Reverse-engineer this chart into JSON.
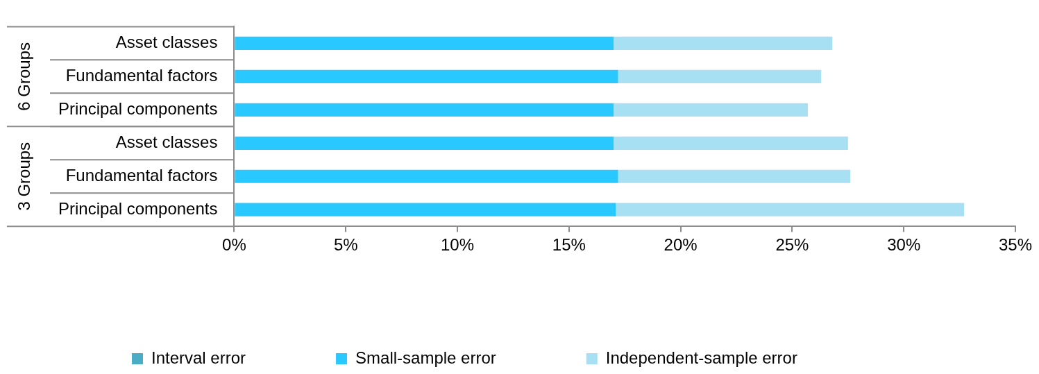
{
  "chart_data": {
    "type": "bar",
    "orientation": "horizontal",
    "stacked": true,
    "categories": [
      "Asset classes",
      "Fundamental factors",
      "Principal components",
      "Asset classes",
      "Fundamental factors",
      "Principal components"
    ],
    "series": [
      {
        "name": "Interval error",
        "color": "#4bacc6",
        "values": [
          0,
          0,
          0,
          0,
          0,
          0
        ]
      },
      {
        "name": "Small-sample error",
        "color": "#29c8ff",
        "values": [
          17.0,
          17.2,
          17.0,
          17.0,
          17.2,
          17.1
        ]
      },
      {
        "name": "Independent-sample error",
        "color": "#a6e0f2",
        "values": [
          9.8,
          9.1,
          8.7,
          10.5,
          10.4,
          15.6
        ]
      }
    ],
    "xlim": [
      0,
      35
    ],
    "xticks": [
      {
        "value": 0,
        "label": "0%"
      },
      {
        "value": 5,
        "label": "5%"
      },
      {
        "value": 10,
        "label": "10%"
      },
      {
        "value": 15,
        "label": "15%"
      },
      {
        "value": 20,
        "label": "20%"
      },
      {
        "value": 25,
        "label": "25%"
      },
      {
        "value": 30,
        "label": "30%"
      },
      {
        "value": 35,
        "label": "35%"
      }
    ],
    "annotations": [
      "6 Groups",
      "3 Groups"
    ],
    "legend": "bottom"
  }
}
